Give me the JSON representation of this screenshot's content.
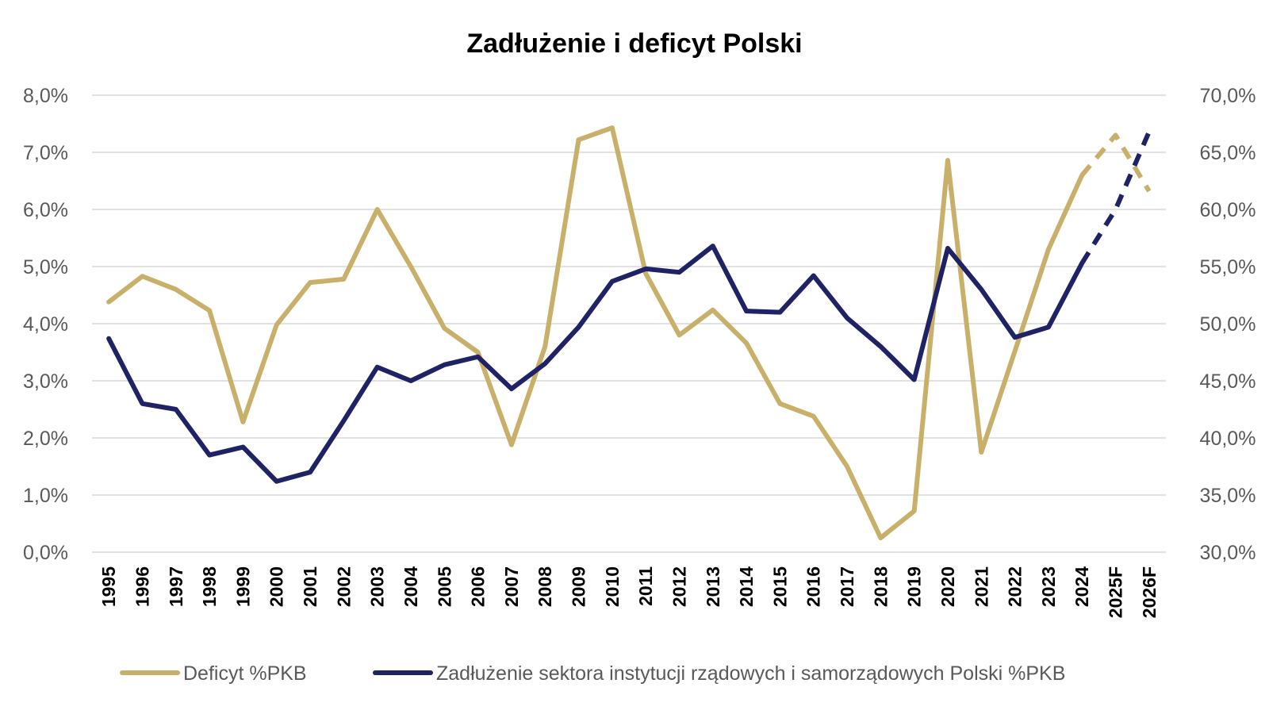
{
  "chart_data": {
    "type": "line",
    "title": "Zadłużenie i deficyt Polski",
    "categories": [
      "1995",
      "1996",
      "1997",
      "1998",
      "1999",
      "2000",
      "2001",
      "2002",
      "2003",
      "2004",
      "2005",
      "2006",
      "2007",
      "2008",
      "2009",
      "2010",
      "2011",
      "2012",
      "2013",
      "2014",
      "2015",
      "2016",
      "2017",
      "2018",
      "2019",
      "2020",
      "2021",
      "2022",
      "2023",
      "2024",
      "2025F",
      "2026F"
    ],
    "forecast_from_index": 29,
    "y_left": {
      "min": 0,
      "max": 8,
      "step": 1,
      "ticks": [
        "0,0%",
        "1,0%",
        "2,0%",
        "3,0%",
        "4,0%",
        "5,0%",
        "6,0%",
        "7,0%",
        "8,0%"
      ]
    },
    "y_right": {
      "min": 30,
      "max": 70,
      "step": 5,
      "ticks": [
        "30,0%",
        "35,0%",
        "40,0%",
        "45,0%",
        "50,0%",
        "55,0%",
        "60,0%",
        "65,0%",
        "70,0%"
      ]
    },
    "grid": true,
    "legend_position": "bottom",
    "series": [
      {
        "name": "Deficyt %PKB",
        "axis": "left",
        "color": "#c9b06a",
        "values": [
          4.38,
          4.83,
          4.6,
          4.23,
          2.28,
          3.98,
          4.72,
          4.78,
          6.0,
          5.0,
          3.92,
          3.5,
          1.88,
          3.6,
          7.22,
          7.43,
          4.88,
          3.8,
          4.24,
          3.66,
          2.6,
          2.38,
          1.5,
          0.25,
          0.72,
          6.86,
          1.75,
          3.52,
          5.3,
          6.6,
          7.3,
          6.32
        ]
      },
      {
        "name": "Zadłużenie sektora instytucji rządowych i samorządowych Polski %PKB",
        "axis": "right",
        "color": "#1f2366",
        "values": [
          48.7,
          43.0,
          42.5,
          38.5,
          39.2,
          36.2,
          37.0,
          41.5,
          46.2,
          45.0,
          46.4,
          47.1,
          44.3,
          46.5,
          49.7,
          53.7,
          54.8,
          54.5,
          56.8,
          51.1,
          51.0,
          54.2,
          50.5,
          48.0,
          45.1,
          56.6,
          53.0,
          48.8,
          49.7,
          55.3,
          60.0,
          66.8
        ]
      }
    ]
  }
}
